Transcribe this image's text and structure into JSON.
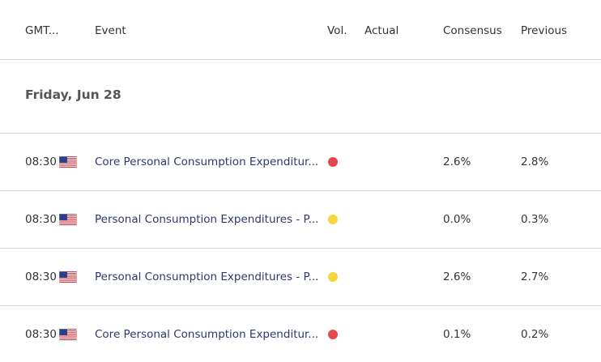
{
  "header": {
    "columns": [
      "GMT...",
      "Event",
      "Vol.",
      "Actual",
      "Consensus",
      "Previous"
    ]
  },
  "group": {
    "date": "Friday, Jun 28"
  },
  "rows": [
    {
      "time": "08:30",
      "event": "Core Personal Consumption Expenditur...",
      "vol_color": "#e5484d",
      "consensus": "2.6%",
      "previous": "2.8%"
    },
    {
      "time": "08:30",
      "event": "Personal Consumption Expenditures - P...",
      "vol_color": "#f5d63d",
      "consensus": "0.0%",
      "previous": "0.3%"
    },
    {
      "time": "08:30",
      "event": "Personal Consumption Expenditures - P...",
      "vol_color": "#f5d63d",
      "consensus": "2.6%",
      "previous": "2.7%"
    },
    {
      "time": "08:30",
      "event": "Core Personal Consumption Expenditur...",
      "vol_color": "#e5484d",
      "consensus": "0.1%",
      "previous": "0.2%"
    }
  ]
}
